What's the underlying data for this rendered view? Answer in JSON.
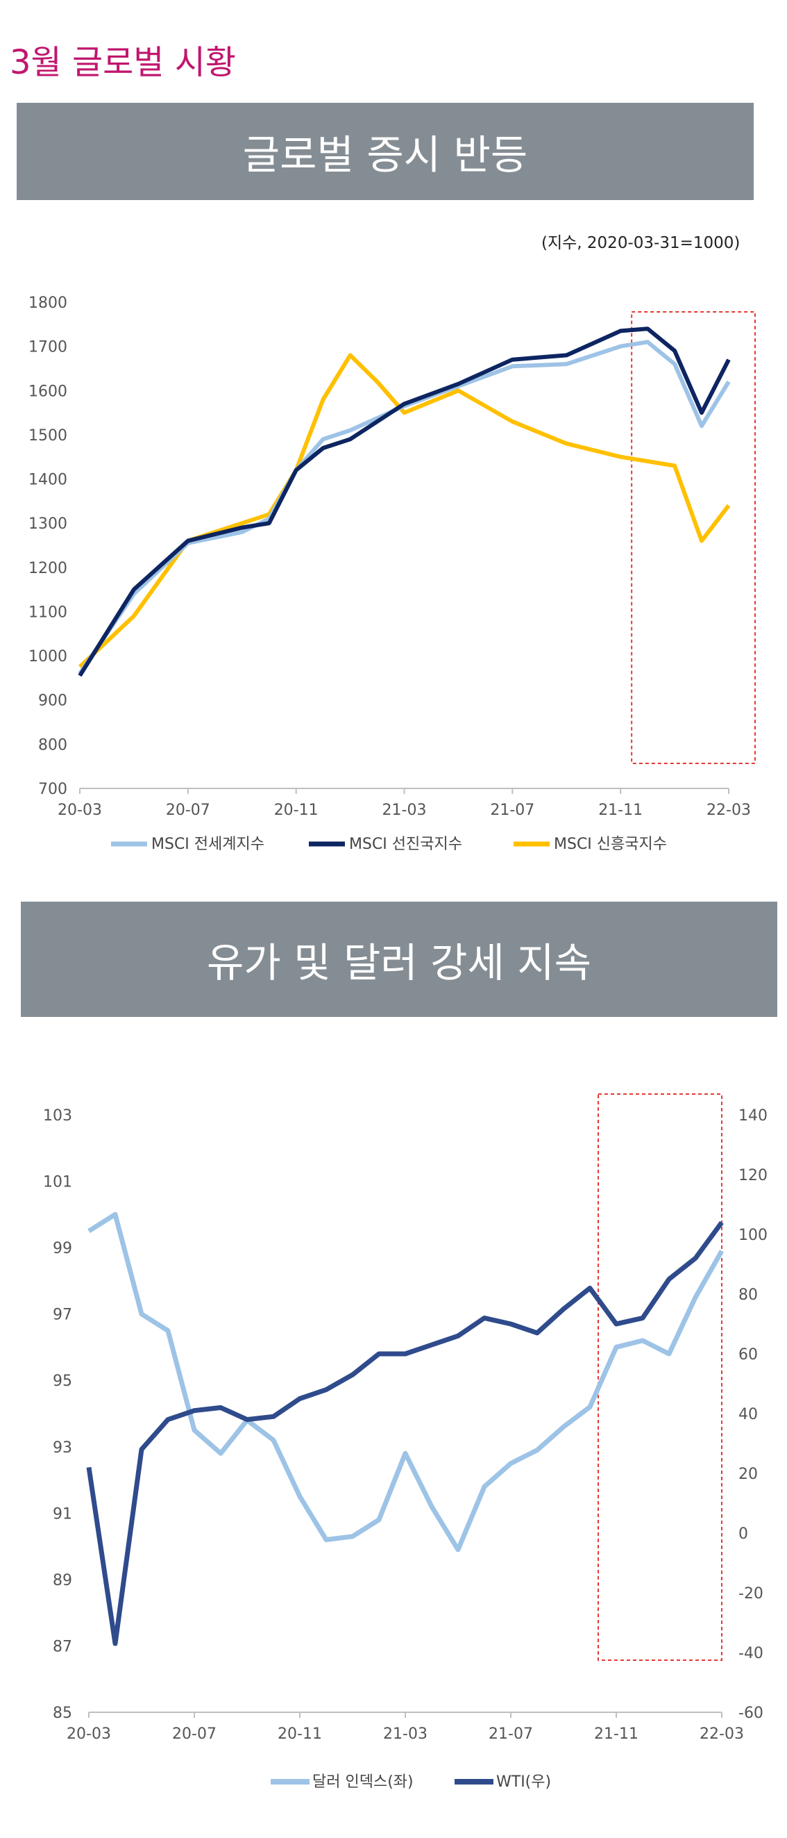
{
  "page_title": "3월 글로벌 시황",
  "sections": [
    {
      "banner": "글로벌 증시 반등",
      "note": "(지수, 2020-03-31=1000)"
    },
    {
      "banner": "유가 및 달러 강세 지속"
    }
  ],
  "chart_data": [
    {
      "type": "line",
      "x_ticks": [
        "20-03",
        "20-07",
        "20-11",
        "21-03",
        "21-07",
        "21-11",
        "22-03"
      ],
      "y_ticks": [
        "700",
        "800",
        "900",
        "1000",
        "1100",
        "1200",
        "1300",
        "1400",
        "1500",
        "1600",
        "1700",
        "1800"
      ],
      "ylim": [
        700,
        1800
      ],
      "highlight_range": [
        "21-11",
        "22-03"
      ],
      "series": [
        {
          "name": "MSCI 전세계지수",
          "color": "#9dc3e6",
          "x": [
            "20-03",
            "20-05",
            "20-07",
            "20-09",
            "20-10",
            "20-11",
            "20-12",
            "21-01",
            "21-03",
            "21-05",
            "21-07",
            "21-09",
            "21-11",
            "21-12",
            "22-01",
            "22-02",
            "22-03"
          ],
          "values": [
            960,
            1140,
            1255,
            1280,
            1310,
            1420,
            1490,
            1510,
            1565,
            1610,
            1655,
            1660,
            1700,
            1710,
            1660,
            1520,
            1620
          ]
        },
        {
          "name": "MSCI 선진국지수",
          "color": "#0d2561",
          "x": [
            "20-03",
            "20-05",
            "20-07",
            "20-09",
            "20-10",
            "20-11",
            "20-12",
            "21-01",
            "21-03",
            "21-05",
            "21-07",
            "21-09",
            "21-11",
            "21-12",
            "22-01",
            "22-02",
            "22-03"
          ],
          "values": [
            955,
            1150,
            1260,
            1290,
            1300,
            1420,
            1470,
            1490,
            1570,
            1615,
            1670,
            1680,
            1735,
            1740,
            1690,
            1550,
            1670
          ]
        },
        {
          "name": "MSCI 신흥국지수",
          "color": "#ffc000",
          "x": [
            "20-03",
            "20-05",
            "20-07",
            "20-09",
            "20-10",
            "20-11",
            "20-12",
            "21-01",
            "21-02",
            "21-03",
            "21-05",
            "21-07",
            "21-09",
            "21-11",
            "21-12",
            "22-01",
            "22-02",
            "22-03"
          ],
          "values": [
            975,
            1090,
            1260,
            1300,
            1320,
            1420,
            1580,
            1680,
            1620,
            1550,
            1600,
            1530,
            1480,
            1450,
            1440,
            1430,
            1260,
            1340
          ]
        }
      ]
    },
    {
      "type": "line",
      "x_ticks": [
        "20-03",
        "20-07",
        "20-11",
        "21-03",
        "21-07",
        "21-11",
        "22-03"
      ],
      "y_ticks_left": [
        "85",
        "87",
        "89",
        "91",
        "93",
        "95",
        "97",
        "99",
        "101",
        "103"
      ],
      "y_ticks_right": [
        "-60",
        "-40",
        "-20",
        "0",
        "20",
        "40",
        "60",
        "80",
        "100",
        "120",
        "140"
      ],
      "ylim_left": [
        85,
        103
      ],
      "ylim_right": [
        -60,
        140
      ],
      "highlight_range": [
        "21-10",
        "22-03"
      ],
      "series": [
        {
          "name": "달러 인덱스(좌)",
          "axis": "left",
          "color": "#9dc3e6",
          "x": [
            "20-03",
            "20-04",
            "20-05",
            "20-06",
            "20-07",
            "20-08",
            "20-09",
            "20-10",
            "20-11",
            "20-12",
            "21-01",
            "21-02",
            "21-03",
            "21-04",
            "21-05",
            "21-06",
            "21-07",
            "21-08",
            "21-09",
            "21-10",
            "21-11",
            "21-12",
            "22-01",
            "22-02",
            "22-03"
          ],
          "values": [
            99.5,
            100,
            97,
            96.5,
            93.5,
            92.8,
            93.8,
            93.2,
            91.5,
            90.2,
            90.3,
            90.8,
            92.8,
            91.2,
            89.9,
            91.8,
            92.5,
            92.9,
            93.6,
            94.2,
            96,
            96.2,
            95.8,
            97.5,
            98.9
          ]
        },
        {
          "name": "WTI(우)",
          "axis": "right",
          "color": "#2f4b8c",
          "x": [
            "20-03",
            "20-04",
            "20-05",
            "20-06",
            "20-07",
            "20-08",
            "20-09",
            "20-10",
            "20-11",
            "20-12",
            "21-01",
            "21-02",
            "21-03",
            "21-04",
            "21-05",
            "21-06",
            "21-07",
            "21-08",
            "21-09",
            "21-10",
            "21-11",
            "21-12",
            "22-01",
            "22-02",
            "22-03"
          ],
          "values": [
            22,
            -37,
            28,
            38,
            41,
            42,
            38,
            39,
            45,
            48,
            53,
            60,
            60,
            63,
            66,
            72,
            70,
            67,
            75,
            82,
            70,
            72,
            85,
            92,
            104
          ]
        }
      ]
    }
  ]
}
